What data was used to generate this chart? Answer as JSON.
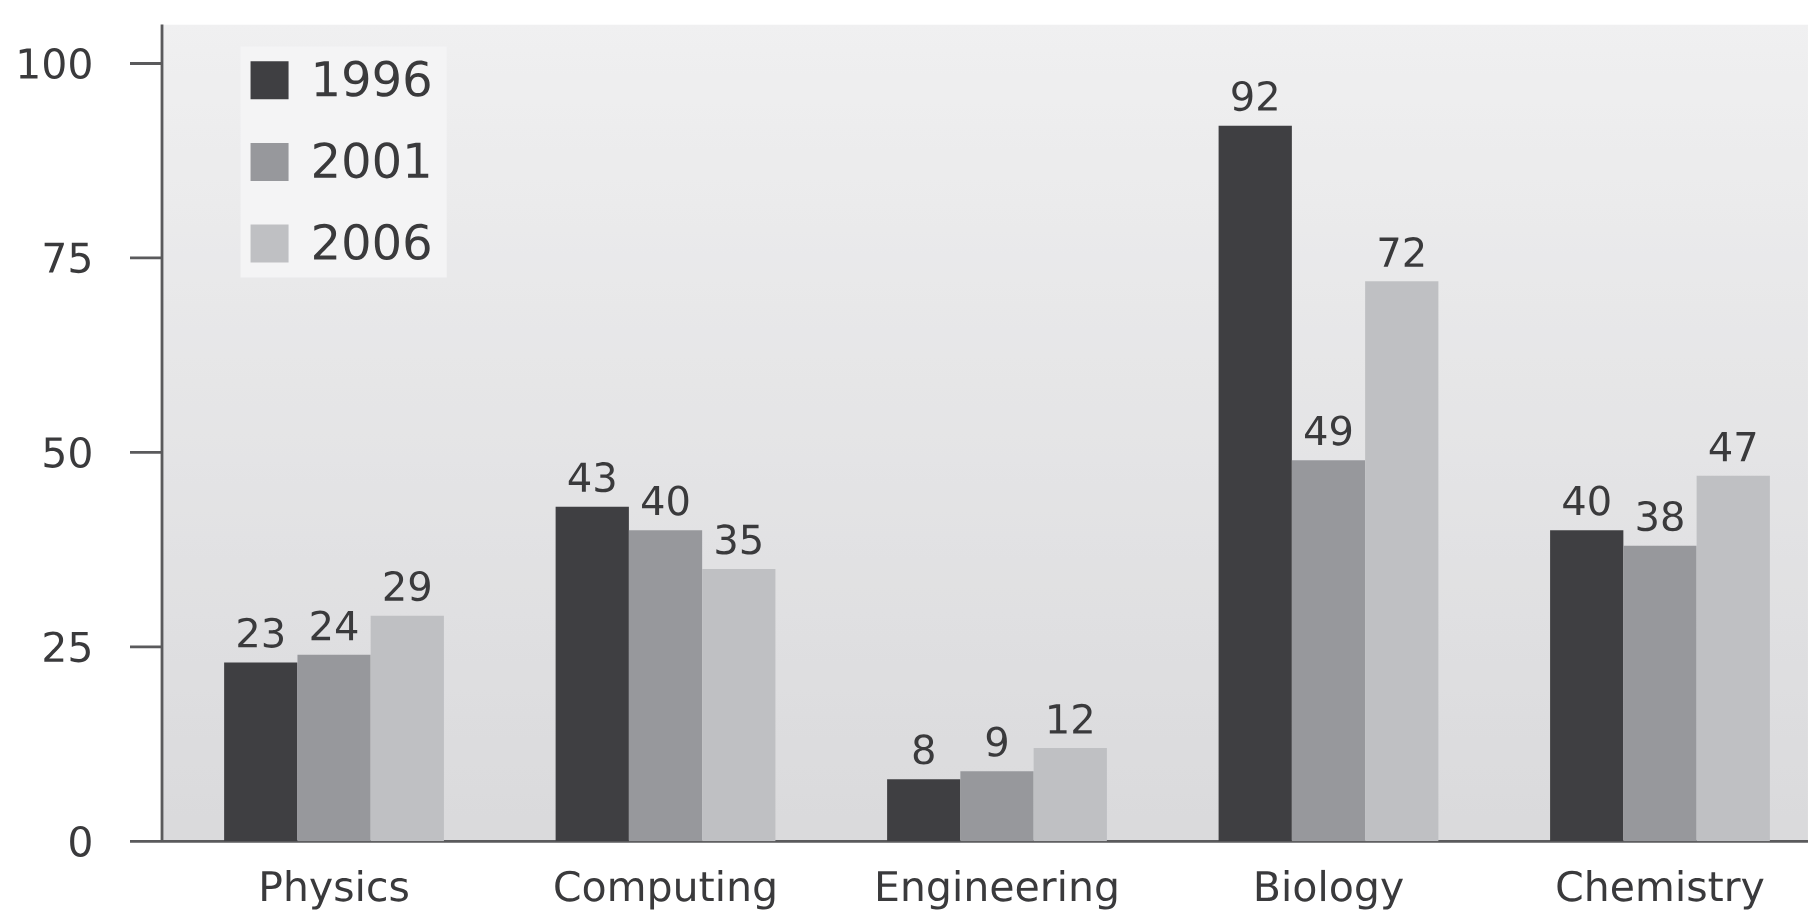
{
  "chart_data": {
    "type": "bar",
    "categories": [
      "Physics",
      "Computing",
      "Engineering",
      "Biology",
      "Chemistry"
    ],
    "series": [
      {
        "name": "1996",
        "color": "#3f3f42",
        "values": [
          23,
          43,
          8,
          92,
          40
        ]
      },
      {
        "name": "2001",
        "color": "#97989c",
        "values": [
          24,
          40,
          9,
          49,
          38
        ]
      },
      {
        "name": "2006",
        "color": "#bfc0c3",
        "values": [
          29,
          35,
          12,
          72,
          47
        ]
      }
    ],
    "ylim": [
      0,
      105
    ],
    "yticks": [
      0,
      25,
      50,
      75,
      100
    ],
    "data_labels": true,
    "legend": "top left"
  }
}
